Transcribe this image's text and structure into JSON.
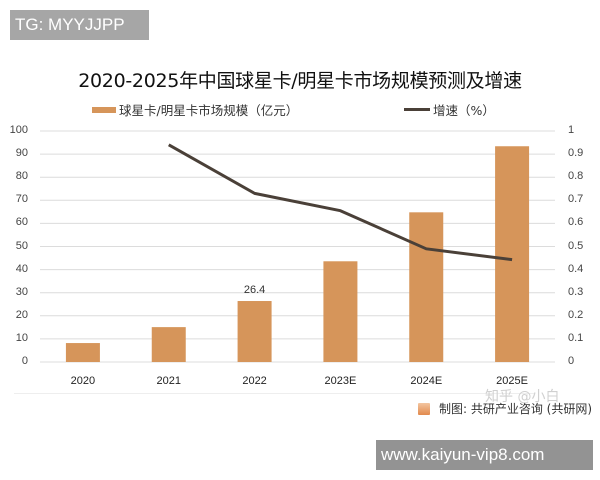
{
  "overlay": {
    "tg_badge": "TG: MYYJJPP",
    "site_badge": "www.kaiyun-vip8.com",
    "zhihu_watermark": "知乎 @小白"
  },
  "chart_data": {
    "type": "bar",
    "title": "2020-2025年中国球星卡/明星卡市场规模预测及增速",
    "categories": [
      "2020",
      "2021",
      "2022",
      "2023E",
      "2024E",
      "2025E"
    ],
    "series": [
      {
        "name": "球星卡/明星卡市场规模（亿元）",
        "type": "bar",
        "axis": "left",
        "color": "#d6955a",
        "values": [
          8.2,
          15.1,
          26.4,
          43.6,
          64.8,
          93.4
        ],
        "data_labels": [
          null,
          null,
          "26.4",
          null,
          null,
          null
        ]
      },
      {
        "name": "增速（%）",
        "type": "line",
        "axis": "right",
        "color": "#4a4038",
        "values": [
          null,
          0.94,
          0.73,
          0.655,
          0.49,
          0.443
        ]
      }
    ],
    "y_left": {
      "min": 0,
      "max": 100,
      "ticks": [
        "0",
        "10",
        "20",
        "30",
        "40",
        "50",
        "60",
        "70",
        "80",
        "90",
        "100"
      ]
    },
    "y_right": {
      "min": 0,
      "max": 1,
      "ticks": [
        "0",
        "0.1",
        "0.2",
        "0.3",
        "0.4",
        "0.5",
        "0.6",
        "0.7",
        "0.8",
        "0.9",
        "1"
      ]
    },
    "xlabel": "",
    "ylabel": "",
    "grid": true,
    "legend_position": "top",
    "source": "制图: 共研产业咨询 (共研网)"
  }
}
